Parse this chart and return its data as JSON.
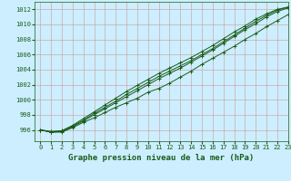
{
  "title": "Graphe pression niveau de la mer (hPa)",
  "bg_color": "#cceeff",
  "grid_color": "#cc9999",
  "line_color": "#1a5c1a",
  "marker_color": "#1a5c1a",
  "xlim": [
    -0.5,
    23
  ],
  "ylim": [
    994.5,
    1013
  ],
  "yticks": [
    996,
    998,
    1000,
    1002,
    1004,
    1006,
    1008,
    1010,
    1012
  ],
  "xticks": [
    0,
    1,
    2,
    3,
    4,
    5,
    6,
    7,
    8,
    9,
    10,
    11,
    12,
    13,
    14,
    15,
    16,
    17,
    18,
    19,
    20,
    21,
    22,
    23
  ],
  "series": [
    [
      996.0,
      995.7,
      995.7,
      996.3,
      997.0,
      997.6,
      998.3,
      999.0,
      999.6,
      1000.2,
      1001.0,
      1001.5,
      1002.2,
      1003.0,
      1003.8,
      1004.7,
      1005.5,
      1006.3,
      1007.1,
      1008.0,
      1008.8,
      1009.7,
      1010.5,
      1011.3
    ],
    [
      996.0,
      995.7,
      995.8,
      996.4,
      997.2,
      998.0,
      998.8,
      999.6,
      1000.4,
      1001.2,
      1002.0,
      1002.8,
      1003.5,
      1004.2,
      1005.0,
      1005.8,
      1006.6,
      1007.5,
      1008.4,
      1009.3,
      1010.1,
      1011.0,
      1011.7,
      1012.2
    ],
    [
      996.0,
      995.7,
      995.8,
      996.5,
      997.3,
      998.2,
      999.0,
      999.8,
      1000.7,
      1001.5,
      1002.3,
      1003.1,
      1003.8,
      1004.5,
      1005.2,
      1006.0,
      1006.8,
      1007.7,
      1008.6,
      1009.5,
      1010.4,
      1011.2,
      1011.9,
      1012.3
    ],
    [
      996.0,
      995.8,
      995.9,
      996.6,
      997.5,
      998.4,
      999.3,
      1000.2,
      1001.1,
      1001.9,
      1002.7,
      1003.5,
      1004.2,
      1004.9,
      1005.6,
      1006.4,
      1007.2,
      1008.1,
      1009.0,
      1009.8,
      1010.7,
      1011.4,
      1012.0,
      1012.3
    ]
  ]
}
